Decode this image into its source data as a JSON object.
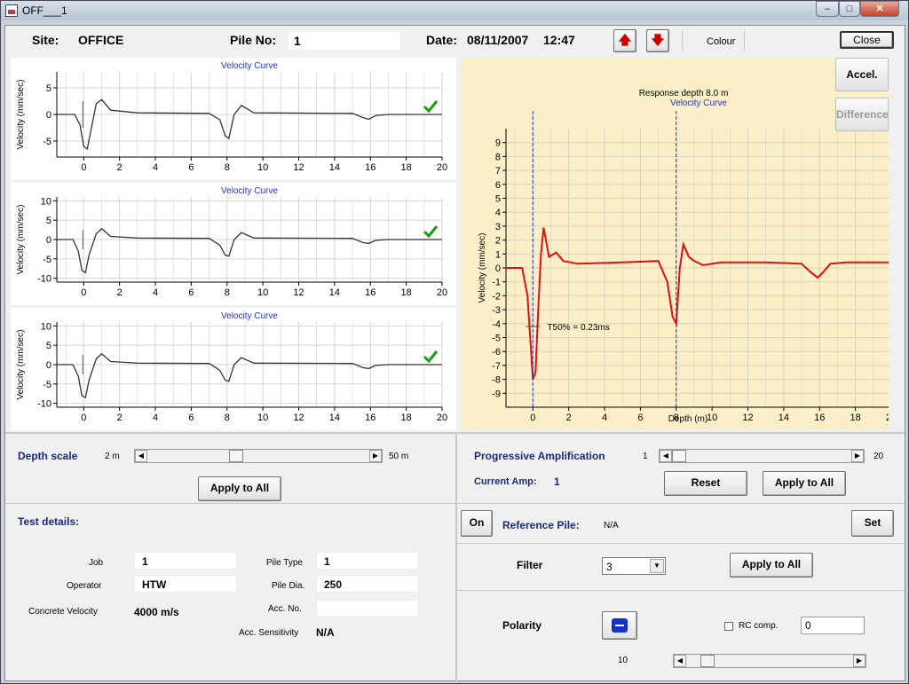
{
  "window": {
    "title": "OFF___1"
  },
  "header": {
    "site_label": "Site:",
    "site_value": "OFFICE",
    "pile_label": "Pile No:",
    "pile_value": "1",
    "date_label": "Date:",
    "date_value": "08/11/2007",
    "time_value": "12:47",
    "colour_label": "Colour",
    "close_label": "Close"
  },
  "small_plots": [
    {
      "title": "Velocity Curve",
      "ylabel": "Velocity (mm/sec)",
      "yticks": [
        "5",
        "0",
        "-5"
      ],
      "xticks": [
        "0",
        "2",
        "4",
        "6",
        "8",
        "10",
        "12",
        "14",
        "16",
        "18",
        "20"
      ]
    },
    {
      "title": "Velocity Curve",
      "ylabel": "Velocity (mm/sec)",
      "yticks": [
        "10",
        "5",
        "0",
        "-5",
        "-10"
      ],
      "xticks": [
        "0",
        "2",
        "4",
        "6",
        "8",
        "10",
        "12",
        "14",
        "16",
        "18",
        "20"
      ]
    },
    {
      "title": "Velocity Curve",
      "ylabel": "Velocity (mm/sec)",
      "yticks": [
        "10",
        "5",
        "0",
        "-5",
        "-10"
      ],
      "xticks": [
        "0",
        "2",
        "4",
        "6",
        "8",
        "10",
        "12",
        "14",
        "16",
        "18",
        "20"
      ]
    }
  ],
  "main_plot": {
    "subtitle": "Response depth 8.0 m",
    "title": "Velocity Curve",
    "ylabel": "Velocity (mm/sec)",
    "xlabel": "Depth (m)",
    "annotation": "T50% = 0.23ms",
    "yticks": [
      "9",
      "8",
      "7",
      "6",
      "5",
      "4",
      "3",
      "2",
      "1",
      "0",
      "-1",
      "-2",
      "-3",
      "-4",
      "-5",
      "-6",
      "-7",
      "-8",
      "-9"
    ],
    "xticks": [
      "0",
      "2",
      "4",
      "6",
      "8",
      "10",
      "12",
      "14",
      "16",
      "18",
      "20"
    ],
    "accel_label": "Accel.",
    "difference_label": "Difference"
  },
  "chart_data": [
    {
      "type": "line",
      "title": "Velocity Curve",
      "ylabel": "Velocity (mm/sec)",
      "xlim": [
        -1.5,
        20
      ],
      "ylim": [
        -8,
        8
      ],
      "series": [
        {
          "x": [
            -1.5,
            -0.5,
            -0.2,
            0,
            0.2,
            0.4,
            0.7,
            1.0,
            1.5,
            3,
            7,
            7.6,
            7.9,
            8.1,
            8.4,
            8.8,
            9.5,
            15,
            15.6,
            15.9,
            16.3,
            17,
            20
          ],
          "y": [
            0,
            0,
            -2,
            -6,
            -6.5,
            -3,
            2,
            2.8,
            0.8,
            0.3,
            0.2,
            -1,
            -4,
            -4.5,
            0,
            1.7,
            0.3,
            0.2,
            -0.6,
            -0.9,
            -0.2,
            0,
            0
          ]
        }
      ]
    },
    {
      "type": "line",
      "title": "Velocity Curve",
      "ylabel": "Velocity (mm/sec)",
      "xlim": [
        -1.5,
        20
      ],
      "ylim": [
        -11,
        11
      ],
      "series": [
        {
          "x": [
            -1.5,
            -0.6,
            -0.3,
            -0.1,
            0.1,
            0.3,
            0.7,
            1.0,
            1.5,
            3,
            7,
            7.6,
            7.9,
            8.1,
            8.4,
            8.8,
            9.5,
            15,
            15.6,
            15.9,
            16.3,
            17,
            20
          ],
          "y": [
            0,
            0,
            -3,
            -8,
            -8.5,
            -4,
            1.5,
            2.8,
            0.8,
            0.4,
            0.3,
            -1.5,
            -4,
            -4.3,
            0,
            1.8,
            0.4,
            0.3,
            -0.8,
            -1,
            -0.2,
            0,
            0
          ]
        }
      ]
    },
    {
      "type": "line",
      "title": "Velocity Curve",
      "ylabel": "Velocity (mm/sec)",
      "xlim": [
        -1.5,
        20
      ],
      "ylim": [
        -11,
        11
      ],
      "series": [
        {
          "x": [
            -1.5,
            -0.6,
            -0.3,
            -0.1,
            0.1,
            0.3,
            0.7,
            1.0,
            1.5,
            3,
            7,
            7.6,
            7.9,
            8.1,
            8.4,
            8.8,
            9.5,
            15,
            15.6,
            15.9,
            16.3,
            17,
            20
          ],
          "y": [
            0,
            0,
            -3,
            -8,
            -8.5,
            -4,
            1.5,
            2.8,
            0.8,
            0.4,
            0.3,
            -1.5,
            -4,
            -4.3,
            0,
            1.8,
            0.4,
            0.3,
            -0.8,
            -1,
            -0.2,
            0,
            0
          ]
        }
      ]
    },
    {
      "type": "line",
      "title": "Velocity Curve",
      "ylabel": "Velocity (mm/sec)",
      "xlabel": "Depth (m)",
      "xlim": [
        -1.5,
        20
      ],
      "ylim": [
        -10,
        10
      ],
      "series": [
        {
          "x": [
            -1.5,
            -0.6,
            -0.3,
            -0.1,
            0,
            0.15,
            0.3,
            0.45,
            0.6,
            0.9,
            1.3,
            1.7,
            2.5,
            5,
            7,
            7.5,
            7.8,
            8.0,
            8.2,
            8.4,
            8.7,
            9.0,
            9.5,
            10.5,
            13,
            15,
            15.5,
            15.9,
            16.2,
            16.6,
            17.5,
            20
          ],
          "y": [
            0,
            0,
            -2,
            -6,
            -8,
            -7.5,
            -3,
            1,
            2.9,
            0.8,
            1.1,
            0.5,
            0.3,
            0.4,
            0.5,
            -1,
            -3.5,
            -4,
            0,
            1.7,
            0.8,
            0.5,
            0.2,
            0.4,
            0.4,
            0.3,
            -0.3,
            -0.7,
            -0.3,
            0.3,
            0.4,
            0.4
          ]
        }
      ],
      "cursor_x": [
        0,
        8
      ]
    }
  ],
  "left_controls": {
    "depth_scale_label": "Depth scale",
    "min_label": "2 m",
    "max_label": "50 m",
    "apply_label": "Apply to All"
  },
  "test_details": {
    "title": "Test details:",
    "job_label": "Job",
    "job_value": "1",
    "operator_label": "Operator",
    "operator_value": "HTW",
    "cv_label": "Concrete Velocity",
    "cv_value": "4000 m/s",
    "pile_type_label": "Pile Type",
    "pile_type_value": "1",
    "pile_dia_label": "Pile Dia.",
    "pile_dia_value": "250",
    "acc_no_label": "Acc. No.",
    "acc_no_value": "",
    "acc_sens_label": "Acc. Sensitivity",
    "acc_sens_value": "N/A"
  },
  "right_controls": {
    "prog_amp_label": "Progressive Amplification",
    "min_label": "1",
    "max_label": "20",
    "current_amp_label": "Current Amp:",
    "current_amp_value": "1",
    "reset_label": "Reset",
    "apply_label": "Apply to All",
    "on_label": "On",
    "ref_pile_label": "Reference Pile:",
    "ref_pile_value": "N/A",
    "set_label": "Set",
    "filter_label": "Filter",
    "filter_value": "3",
    "filter_apply_label": "Apply to All",
    "polarity_label": "Polarity",
    "rc_label": "RC comp.",
    "rc_value": "0",
    "bottom_value": "10"
  }
}
